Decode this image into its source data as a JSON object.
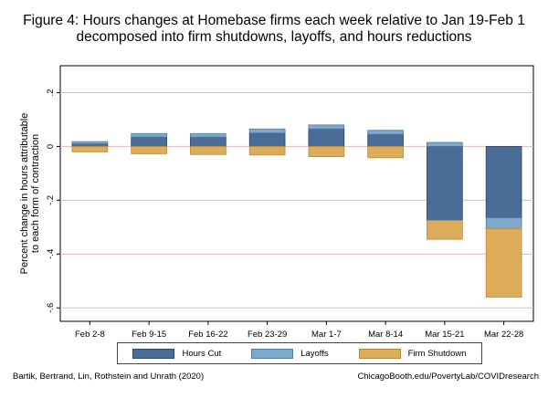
{
  "title": {
    "line1": "Figure 4: Hours changes at Homebase firms each week relative to Jan 19-Feb 1",
    "line2": "decomposed into firm shutdowns, layoffs, and hours reductions"
  },
  "colors": {
    "hours_cut": "#4a6d97",
    "layoffs": "#7fa8c9",
    "firm_shutdown": "#dcac5a",
    "hours_cut_edge": "#2d4566",
    "layoffs_edge": "#4f7ea6",
    "firm_shutdown_edge": "#b8863a",
    "plot_bg": "#ffffff",
    "grid": "#e7b8b8"
  },
  "chart_data": {
    "type": "bar",
    "stacked": true,
    "categories": [
      "Feb 2-8",
      "Feb 9-15",
      "Feb 16-22",
      "Feb 23-29",
      "Mar 1-7",
      "Mar 8-14",
      "Mar 15-21",
      "Mar 22-28"
    ],
    "series": [
      {
        "name": "Hours Cut",
        "values": [
          0.01,
          0.035,
          0.035,
          0.05,
          0.065,
          0.045,
          -0.275,
          -0.265
        ]
      },
      {
        "name": "Layoffs",
        "values": [
          0.008,
          0.013,
          0.013,
          0.015,
          0.015,
          0.015,
          0.015,
          -0.04
        ]
      },
      {
        "name": "Firm Shutdown",
        "values": [
          -0.02,
          -0.027,
          -0.03,
          -0.032,
          -0.038,
          -0.042,
          -0.07,
          -0.255
        ]
      }
    ],
    "xlabel": "",
    "ylabel_line1": "Percent change in hours attributable",
    "ylabel_line2": "to each form of contraction",
    "ylim": [
      -0.65,
      0.3
    ],
    "yticks": [
      0.2,
      0,
      -0.2,
      -0.4,
      -0.6
    ],
    "ytick_labels": [
      ".2",
      "0",
      "-.2",
      "-.4",
      "-.6"
    ],
    "grid": true,
    "legend_position": "bottom"
  },
  "legend": {
    "items": [
      "Hours Cut",
      "Layoffs",
      "Firm Shutdown"
    ]
  },
  "footer": {
    "left": "Bartik, Bertrand, Lin, Rothstein and Unrath (2020)",
    "right": "ChicagoBooth.edu/PovertyLab/COVIDresearch"
  }
}
